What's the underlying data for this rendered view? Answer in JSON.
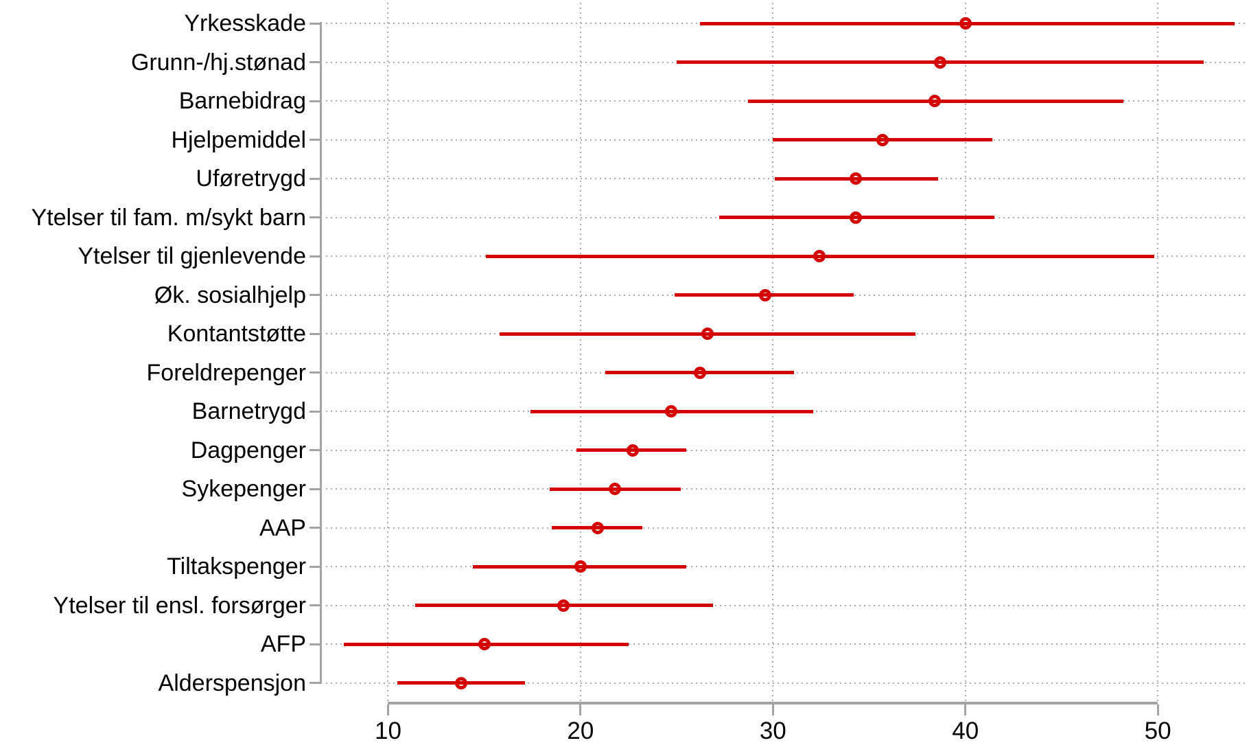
{
  "chart_data": {
    "type": "scatter",
    "subtype": "dot-with-confidence-intervals",
    "title": "",
    "xlabel": "",
    "ylabel": "",
    "legend": "none",
    "grid": "dotted vertical gridlines at x ticks and dotted horizontal guide per category",
    "marker": "hollow-circle",
    "x_ticks": [
      10,
      20,
      30,
      40,
      50
    ],
    "x_axis_line_span": [
      10,
      50
    ],
    "x_range": [
      6.56,
      54.56
    ],
    "categories": [
      "Yrkesskade",
      "Grunn-/hj.stønad",
      "Barnebidrag",
      "Hjelpemiddel",
      "Uføretrygd",
      "Ytelser til fam. m/sykt barn",
      "Ytelser til gjenlevende",
      "Øk. sosialhjelp",
      "Kontantstøtte",
      "Foreldrepenger",
      "Barnetrygd",
      "Dagpenger",
      "Sykepenger",
      "AAP",
      "Tiltakspenger",
      "Ytelser til ensl. forsørger",
      "AFP",
      "Alderspensjon"
    ],
    "series": [
      {
        "name": "estimate",
        "values": [
          40.0,
          38.7,
          38.4,
          35.7,
          34.3,
          34.3,
          32.4,
          29.6,
          26.6,
          26.2,
          24.7,
          22.7,
          21.8,
          20.9,
          20.0,
          19.1,
          15.0,
          13.8
        ]
      },
      {
        "name": "ci_lower",
        "values": [
          26.2,
          25.0,
          28.7,
          30.0,
          30.1,
          27.2,
          15.1,
          24.9,
          15.8,
          21.3,
          17.4,
          19.8,
          18.4,
          18.5,
          14.4,
          11.4,
          7.7,
          10.5
        ]
      },
      {
        "name": "ci_upper",
        "values": [
          54.0,
          52.4,
          48.2,
          41.4,
          38.6,
          41.5,
          49.8,
          34.2,
          37.4,
          31.1,
          32.1,
          25.5,
          25.2,
          23.2,
          25.5,
          26.9,
          22.5,
          17.1
        ]
      }
    ],
    "colors": {
      "series": "#d40000",
      "axis": "#a3a3a3",
      "grid_dots": "#ababab",
      "text": "#000000",
      "background": "#ffffff"
    }
  }
}
